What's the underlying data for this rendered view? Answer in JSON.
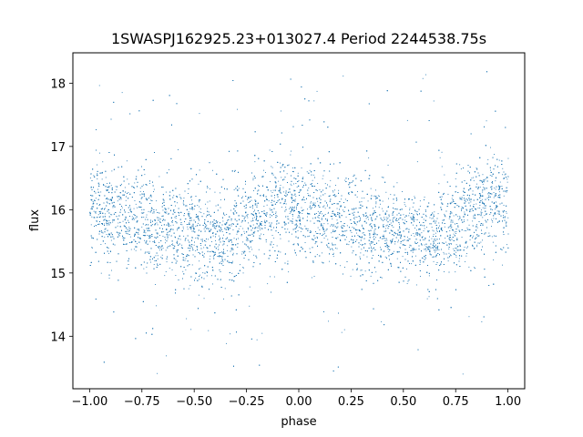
{
  "chart_data": {
    "type": "scatter",
    "title": "1SWASPJ162925.23+013027.4 Period 2244538.75s",
    "xlabel": "phase",
    "ylabel": "flux",
    "xlim": [
      -1.08,
      1.08
    ],
    "ylim": [
      13.17,
      18.48
    ],
    "xticks": [
      -1.0,
      -0.75,
      -0.5,
      -0.25,
      0.0,
      0.25,
      0.5,
      0.75,
      1.0
    ],
    "xtick_labels": [
      "−1.00",
      "−0.75",
      "−0.50",
      "−0.25",
      "0.00",
      "0.25",
      "0.50",
      "0.75",
      "1.00"
    ],
    "yticks": [
      14,
      15,
      16,
      17,
      18
    ],
    "ytick_labels": [
      "14",
      "15",
      "16",
      "17",
      "18"
    ],
    "grid": false,
    "marker_color": "#1f77b4",
    "series": [
      {
        "phase_range": [
          -1.0,
          1.0
        ],
        "point_density": "very dense, tens of thousands of points",
        "profile": [
          {
            "x": -1.0,
            "center": 16.0,
            "spread": 0.45
          },
          {
            "x": -0.75,
            "center": 15.85,
            "spread": 0.45
          },
          {
            "x": -0.5,
            "center": 15.6,
            "spread": 0.45
          },
          {
            "x": -0.4,
            "center": 15.55,
            "spread": 0.45
          },
          {
            "x": -0.25,
            "center": 15.75,
            "spread": 0.45
          },
          {
            "x": -0.1,
            "center": 16.15,
            "spread": 0.45
          },
          {
            "x": 0.0,
            "center": 16.0,
            "spread": 0.45
          },
          {
            "x": 0.25,
            "center": 15.85,
            "spread": 0.45
          },
          {
            "x": 0.5,
            "center": 15.6,
            "spread": 0.45
          },
          {
            "x": 0.6,
            "center": 15.55,
            "spread": 0.45
          },
          {
            "x": 0.75,
            "center": 15.75,
            "spread": 0.45
          },
          {
            "x": 0.9,
            "center": 16.15,
            "spread": 0.45
          },
          {
            "x": 1.0,
            "center": 16.05,
            "spread": 0.45
          }
        ],
        "outlier_range": [
          13.4,
          18.2
        ]
      }
    ]
  }
}
